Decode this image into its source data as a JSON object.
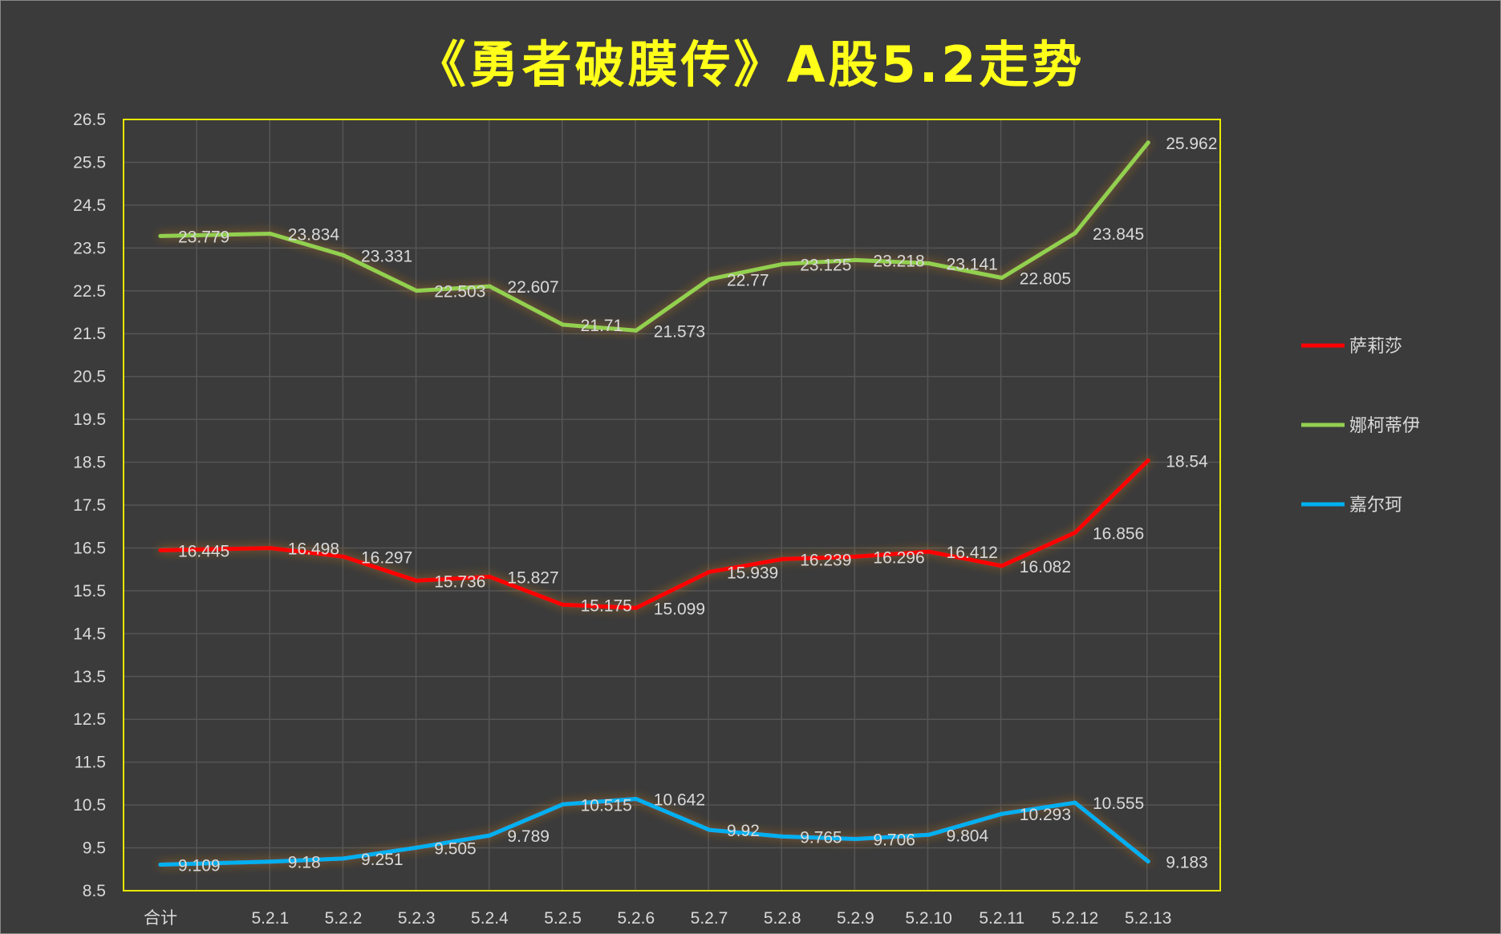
{
  "chart_data": {
    "type": "line",
    "title": "《勇者破膜传》A股5.2走势",
    "categories": [
      "合计",
      "5.2.1",
      "5.2.2",
      "5.2.3",
      "5.2.4",
      "5.2.5",
      "5.2.6",
      "5.2.7",
      "5.2.8",
      "5.2.9",
      "5.2.10",
      "5.2.11",
      "5.2.12",
      "5.2.13"
    ],
    "ylim": [
      8.5,
      26.5
    ],
    "yticks": [
      "8.5",
      "9.5",
      "10.5",
      "11.5",
      "12.5",
      "13.5",
      "14.5",
      "15.5",
      "16.5",
      "17.5",
      "18.5",
      "19.5",
      "20.5",
      "21.5",
      "22.5",
      "23.5",
      "24.5",
      "25.5",
      "26.5"
    ],
    "grid": true,
    "legend_position": "right",
    "series": [
      {
        "name": "萨莉莎",
        "color": "#ff0000",
        "values": [
          16.445,
          16.498,
          16.297,
          15.736,
          15.827,
          15.175,
          15.099,
          15.939,
          16.239,
          16.296,
          16.412,
          16.082,
          16.856,
          18.54
        ],
        "labels": [
          "16.445",
          "16.498",
          "16.297",
          "15.736",
          "15.827",
          "15.175",
          "15.099",
          "15.939",
          "16.239",
          "16.296",
          "16.412",
          "16.082",
          "16.856",
          "18.54"
        ]
      },
      {
        "name": "娜柯蒂伊",
        "color": "#92d050",
        "values": [
          23.779,
          23.834,
          23.331,
          22.503,
          22.607,
          21.71,
          21.573,
          22.77,
          23.125,
          23.218,
          23.141,
          22.805,
          23.845,
          25.962
        ],
        "labels": [
          "23.779",
          "23.834",
          "23.331",
          "22.503",
          "22.607",
          "21.71",
          "21.573",
          "22.77",
          "23.125",
          "23.218",
          "23.141",
          "22.805",
          "23.845",
          "25.962"
        ]
      },
      {
        "name": "嘉尔珂",
        "color": "#00b0f0",
        "values": [
          9.109,
          9.18,
          9.251,
          9.505,
          9.789,
          10.515,
          10.642,
          9.92,
          9.765,
          9.706,
          9.804,
          10.293,
          10.555,
          9.183
        ],
        "labels": [
          "9.109",
          "9.18",
          "9.251",
          "9.505",
          "9.789",
          "10.515",
          "10.642",
          "9.92",
          "9.765",
          "9.706",
          "9.804",
          "10.293",
          "10.555",
          "9.183"
        ]
      }
    ]
  }
}
